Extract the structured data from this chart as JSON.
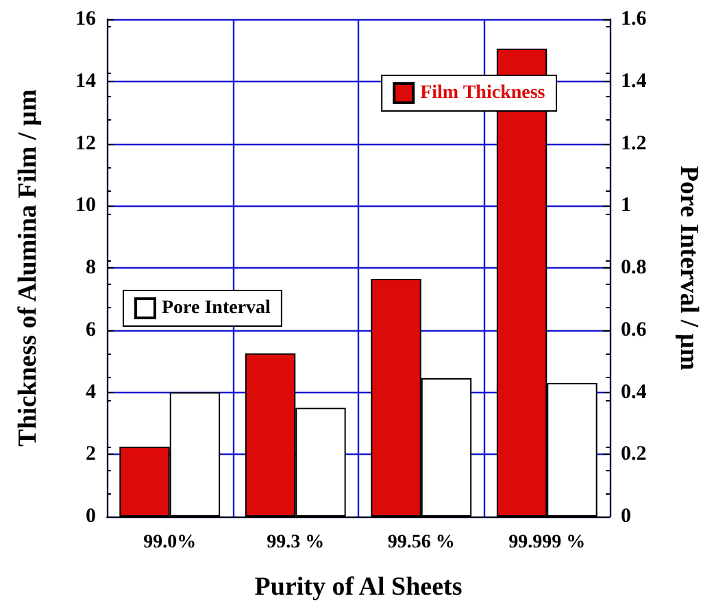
{
  "chart_data": {
    "type": "bar",
    "xlabel": "Purity of Al Sheets",
    "ylabel": "Thickness of Alumina Film / µm",
    "y2label": "Pore Interval / µm",
    "categories": [
      "99.0%",
      "99.3 %",
      "99.56 %",
      "99.999 %"
    ],
    "series": [
      {
        "name": "Film Thickness",
        "color": "#dd0a0a",
        "values": [
          2.25,
          5.25,
          7.65,
          15.05
        ]
      },
      {
        "name": "Pore Interval",
        "color": "#ffffff",
        "axis": "y2",
        "values": [
          0.4,
          0.35,
          0.445,
          0.43
        ]
      }
    ],
    "ylim": [
      0,
      16
    ],
    "yticks": [
      0,
      2,
      4,
      6,
      8,
      10,
      12,
      14,
      16
    ],
    "y2lim": [
      0,
      1.6
    ],
    "y2ticks": [
      0,
      0.2,
      0.4,
      0.6,
      0.8,
      1,
      1.2,
      1.4,
      1.6
    ],
    "grid": true,
    "legend": "top right"
  }
}
